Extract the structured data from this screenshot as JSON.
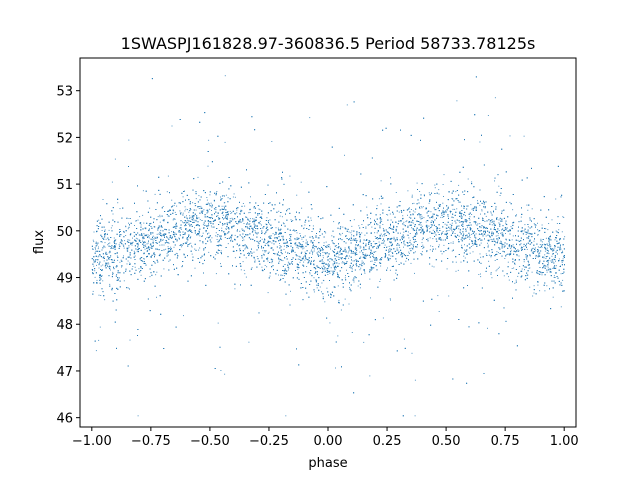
{
  "chart_data": {
    "type": "scatter",
    "title": "1SWASPJ161828.97-360836.5 Period 58733.78125s",
    "xlabel": "phase",
    "ylabel": "flux",
    "xlim": [
      -1.05,
      1.05
    ],
    "ylim": [
      45.8,
      53.7
    ],
    "xticks": [
      -1.0,
      -0.75,
      -0.5,
      -0.25,
      0.0,
      0.25,
      0.5,
      0.75,
      1.0
    ],
    "xtick_labels": [
      "−1.00",
      "−0.75",
      "−0.50",
      "−0.25",
      "0.00",
      "0.25",
      "0.50",
      "0.75",
      "1.00"
    ],
    "yticks": [
      46,
      47,
      48,
      49,
      50,
      51,
      52,
      53
    ],
    "ytick_labels": [
      "46",
      "47",
      "48",
      "49",
      "50",
      "51",
      "52",
      "53"
    ],
    "grid": false,
    "legend": "none",
    "series": [
      {
        "color": "#1f77b4",
        "marker": "point",
        "trend": {
          "x": [
            -1.0,
            -0.9,
            -0.75,
            -0.6,
            -0.5,
            -0.4,
            -0.25,
            -0.1,
            0.0,
            0.1,
            0.25,
            0.4,
            0.5,
            0.6,
            0.75,
            0.9,
            1.0
          ],
          "y": [
            49.4,
            49.5,
            49.8,
            50.1,
            50.2,
            50.1,
            49.8,
            49.5,
            49.4,
            49.5,
            49.8,
            50.1,
            50.2,
            50.1,
            49.8,
            49.5,
            49.4
          ]
        },
        "point_count": 9000
      }
    ]
  }
}
